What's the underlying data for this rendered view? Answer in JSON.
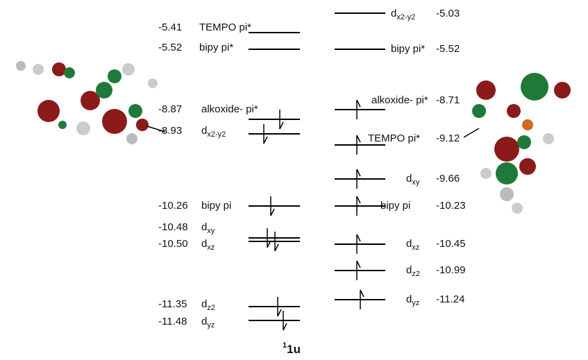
{
  "diagram": {
    "title_superscript": "1",
    "title": "1u",
    "left_levels": [
      {
        "energy": "-5.41",
        "label": "TEMPO  pi*",
        "electrons": 0
      },
      {
        "energy": "-5.52",
        "label": "bipy pi*",
        "electrons": 0
      },
      {
        "energy": "-8.87",
        "label": "alkoxide- pi*",
        "electrons": 1
      },
      {
        "energy": "-8.93",
        "label": "d",
        "sub": "x2-y2",
        "electrons": 1
      },
      {
        "energy": "-10.26",
        "label": "bipy pi",
        "electrons": 1
      },
      {
        "energy": "-10.48",
        "label": "d",
        "sub": "xy",
        "electrons": 1
      },
      {
        "energy": "-10.50",
        "label": "d",
        "sub": "xz",
        "electrons": 1
      },
      {
        "energy": "-11.35",
        "label": "d",
        "sub": "z2",
        "electrons": 1
      },
      {
        "energy": "-11.48",
        "label": "d",
        "sub": "yz",
        "electrons": 1
      }
    ],
    "right_levels": [
      {
        "energy": "-5.03",
        "label": "d",
        "sub": "x2-y2",
        "electrons": 0
      },
      {
        "energy": "-5.52",
        "label": "bipy pi*",
        "electrons": 0
      },
      {
        "energy": "-8.71",
        "label": "alkoxide- pi*",
        "electrons": 1
      },
      {
        "energy": "-9.12",
        "label": "TEMPO  pi*",
        "electrons": 1
      },
      {
        "energy": "-9.66",
        "label": "d",
        "sub": "xy",
        "electrons": 1
      },
      {
        "energy": "-10.23",
        "label": "bipy pi",
        "electrons": 1
      },
      {
        "energy": "-10.45",
        "label": "d",
        "sub": "xz",
        "electrons": 1
      },
      {
        "energy": "-10.99",
        "label": "d",
        "sub": "z2",
        "electrons": 1
      },
      {
        "energy": "-11.24",
        "label": "d",
        "sub": "yz",
        "electrons": 1
      }
    ]
  }
}
